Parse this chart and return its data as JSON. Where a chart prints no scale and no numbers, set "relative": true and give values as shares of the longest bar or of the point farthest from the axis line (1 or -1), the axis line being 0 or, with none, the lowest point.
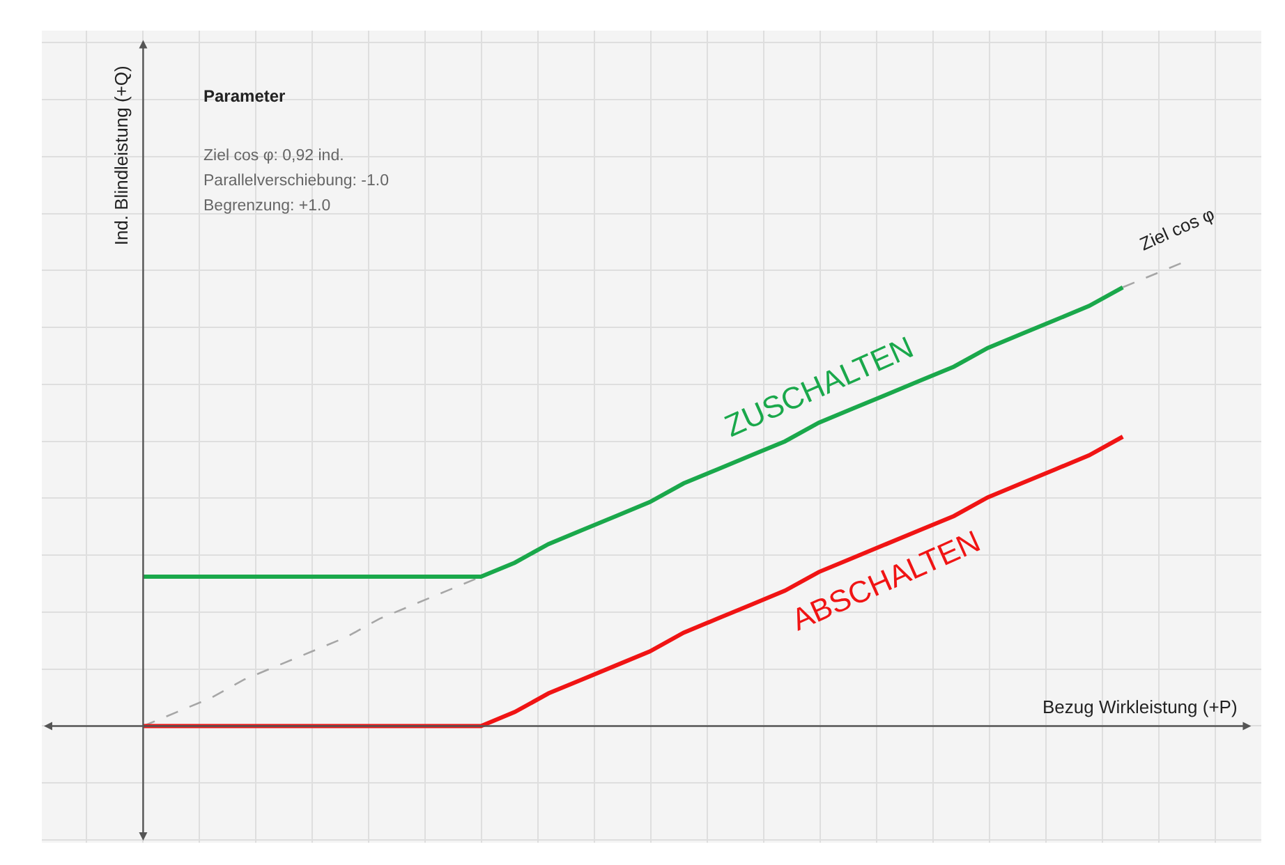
{
  "chart_data": {
    "type": "line",
    "relative": true,
    "xlabel": "Bezug Wirkleistung (+P)",
    "ylabel": "Ind. Blindleistung (+Q)",
    "categories": [
      null,
      null,
      null,
      null,
      null,
      null,
      null,
      null,
      null,
      null,
      null,
      null,
      null,
      null,
      null,
      null,
      null,
      null,
      null,
      null,
      null,
      null,
      null,
      null,
      null,
      null,
      null,
      null,
      null,
      null,
      null,
      null
    ],
    "series": [
      {
        "name": "Ziel cos φ",
        "color": "#a6a6a6",
        "line_style": "dashed",
        "values": [
          0,
          0.03,
          0.06,
          0.1,
          0.13,
          0.16,
          0.19,
          0.23,
          0.26,
          0.29,
          0.32,
          null,
          null,
          null,
          null,
          null,
          null,
          null,
          null,
          null,
          null,
          null,
          null,
          null,
          null,
          null,
          null,
          null,
          null,
          0.94,
          0.97,
          1
        ]
      },
      {
        "name": "ZUSCHALTEN",
        "color": "#1aa84b",
        "line_style": "solid",
        "values": [
          0.32,
          0.32,
          0.32,
          0.32,
          0.32,
          0.32,
          0.32,
          0.32,
          0.32,
          0.32,
          0.32,
          0.35,
          0.39,
          0.42,
          0.45,
          0.48,
          0.52,
          0.55,
          0.58,
          0.61,
          0.65,
          0.68,
          0.71,
          0.74,
          0.77,
          0.81,
          0.84,
          0.87,
          0.9,
          0.94,
          null,
          null
        ]
      },
      {
        "name": "ABSCHALTEN",
        "color": "#f01414",
        "line_style": "solid",
        "values": [
          0,
          0,
          0,
          0,
          0,
          0,
          0,
          0,
          0,
          0,
          0,
          0.03,
          0.07,
          0.1,
          0.13,
          0.16,
          0.2,
          0.23,
          0.26,
          0.29,
          0.33,
          0.36,
          0.39,
          0.42,
          0.45,
          0.49,
          0.52,
          0.55,
          0.58,
          0.62,
          null,
          null
        ]
      }
    ],
    "annotations": [
      "Parameter",
      "Ziel cos φ: 0,92 ind.",
      "Parallelverschiebung: -1.0",
      "Begrenzung: +1.0"
    ],
    "grid": true,
    "legend": false,
    "marker": "none"
  }
}
